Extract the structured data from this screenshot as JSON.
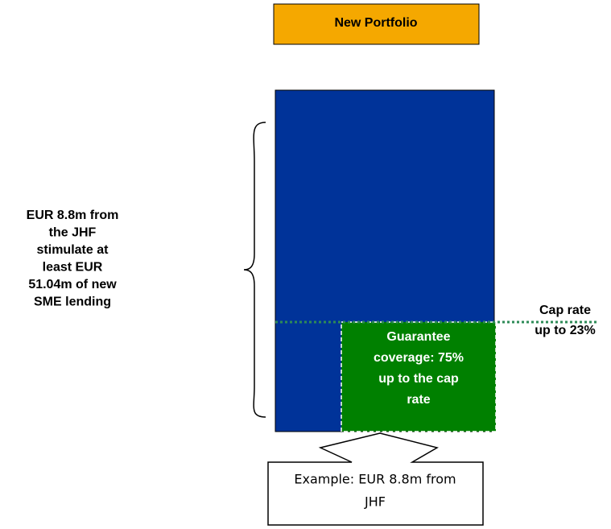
{
  "header": {
    "title": "New Portfolio"
  },
  "left_label": {
    "lines": [
      "EUR 8.8m from",
      "the JHF",
      "stimulate at",
      "least EUR",
      "51.04m of new",
      "SME lending"
    ]
  },
  "cap_label": {
    "lines": [
      "Cap rate",
      "up to 23%"
    ]
  },
  "guarantee_label": {
    "lines": [
      "Guarantee",
      "coverage: 75%",
      "up to the cap",
      "rate"
    ]
  },
  "callout": {
    "lines": [
      "Example: EUR 8.8m from",
      "JHF"
    ]
  }
}
